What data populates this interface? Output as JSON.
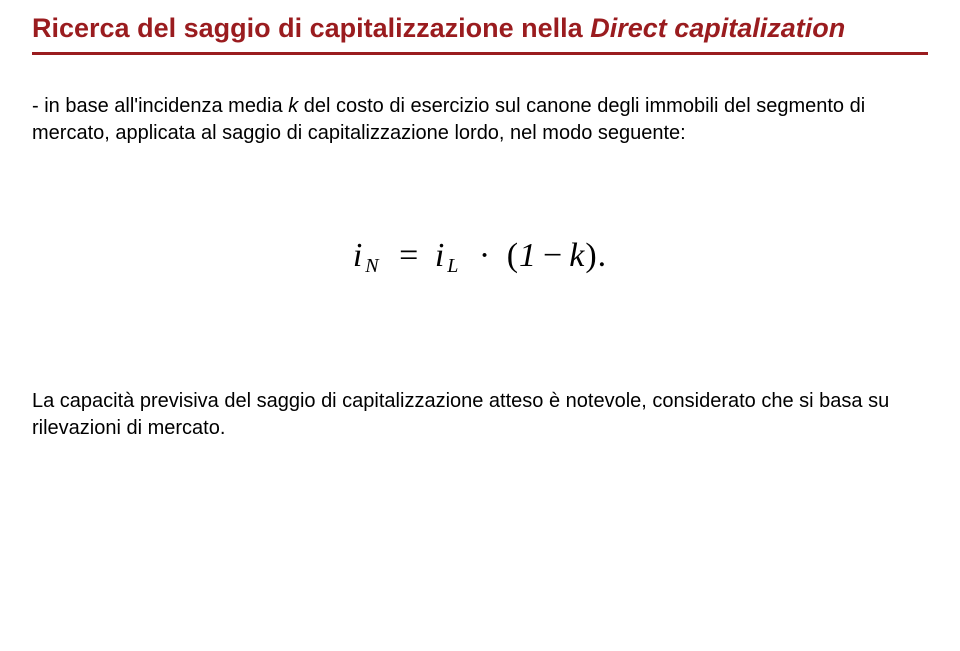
{
  "colors": {
    "title_text": "#9a1c1f",
    "title_rule": "#9a1c1f",
    "body_text": "#000000",
    "background": "#ffffff"
  },
  "title": {
    "part1": "Ricerca del saggio di capitalizzazione nella",
    "part2": "Direct capitalization"
  },
  "paragraph1": {
    "lead": "- in base all'incidenza media ",
    "k": "k",
    "rest": " del costo di esercizio sul canone degli immobili del segmento di mercato, applicata al saggio di capitalizzazione lordo, nel modo seguente:"
  },
  "formula": {
    "i1": "i",
    "sub1": "N",
    "eq": "=",
    "i2": "i",
    "sub2": "L",
    "dot": "·",
    "lparen": "(",
    "one": "1",
    "minus": "−",
    "k": "k",
    "rparen": ")",
    "period": "."
  },
  "paragraph2": "La capacità previsiva del saggio di capitalizzazione atteso è notevole, considerato che si basa su rilevazioni di mercato."
}
